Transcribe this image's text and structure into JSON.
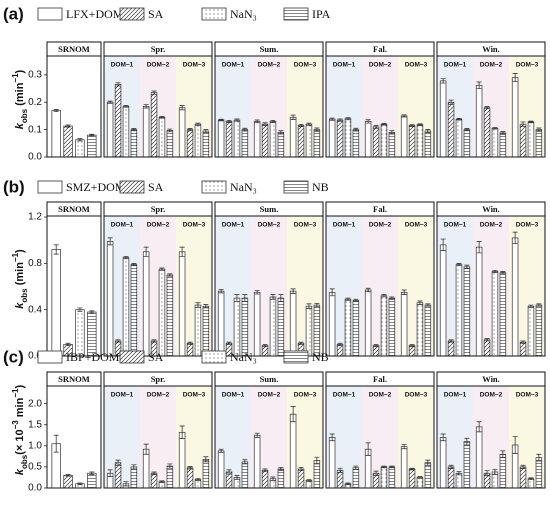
{
  "chart_data": [
    {
      "type": "grouped_bar",
      "panel_label": "(a)",
      "ylabel": [
        {
          "text": "k",
          "style": "italic"
        },
        {
          "text": "obs",
          "style": "sub"
        },
        {
          "text": " (min"
        },
        {
          "text": "−1",
          "style": "sup"
        },
        {
          "text": ")"
        }
      ],
      "groups": [
        {
          "name": "SRNOM",
          "categories": [
            null
          ]
        },
        {
          "name": "Spr.",
          "categories": [
            "DOM−1",
            "DOM−2",
            "DOM−3"
          ]
        },
        {
          "name": "Sum.",
          "categories": [
            "DOM−1",
            "DOM−2",
            "DOM−3"
          ]
        },
        {
          "name": "Fal.",
          "categories": [
            "DOM−1",
            "DOM−2",
            "DOM−3"
          ]
        },
        {
          "name": "Win.",
          "categories": [
            "DOM−1",
            "DOM−2",
            "DOM−3"
          ]
        }
      ],
      "band_colors": [
        "#e9f0f7",
        "#f7edf3",
        "#faf7e3"
      ],
      "ylim": [
        0,
        0.42
      ],
      "yticks": [
        {
          "value": 0,
          "label": "0.0"
        },
        0.1,
        0.2,
        0.3
      ],
      "series": [
        {
          "name": "LFX+DOM",
          "pattern": "none",
          "values": [
            0.17,
            0.2,
            0.185,
            0.18,
            0.135,
            0.13,
            0.145,
            0.138,
            0.13,
            0.15,
            0.278,
            0.262,
            0.29
          ],
          "errors": [
            0.004,
            0.004,
            0.006,
            0.008,
            0.003,
            0.005,
            0.008,
            0.004,
            0.006,
            0.004,
            0.008,
            0.012,
            0.015
          ]
        },
        {
          "name": "SA",
          "pattern": "diagonal",
          "values": [
            0.113,
            0.265,
            0.235,
            0.1,
            0.13,
            0.12,
            0.115,
            0.135,
            0.11,
            0.115,
            0.2,
            0.18,
            0.12
          ],
          "errors": [
            0.004,
            0.006,
            0.006,
            0.004,
            0.004,
            0.005,
            0.004,
            0.004,
            0.005,
            0.004,
            0.008,
            0.004,
            0.008
          ]
        },
        {
          "name": "NaN₃",
          "pattern": "dots",
          "values": [
            0.063,
            0.185,
            0.145,
            0.12,
            0.135,
            0.13,
            0.12,
            0.14,
            0.12,
            0.118,
            0.138,
            0.105,
            0.128
          ],
          "errors": [
            0.004,
            0.003,
            0.003,
            0.004,
            0.004,
            0.004,
            0.004,
            0.004,
            0.003,
            0.003,
            0.003,
            0.003,
            0.003
          ]
        },
        {
          "name": "IPA",
          "pattern": "horizontal",
          "values": [
            0.08,
            0.1,
            0.097,
            0.095,
            0.1,
            0.09,
            0.1,
            0.1,
            0.09,
            0.095,
            0.1,
            0.088,
            0.1
          ],
          "errors": [
            0.003,
            0.004,
            0.005,
            0.005,
            0.005,
            0.006,
            0.006,
            0.005,
            0.006,
            0.006,
            0.004,
            0.005,
            0.006
          ]
        }
      ]
    },
    {
      "type": "grouped_bar",
      "panel_label": "(b)",
      "ylabel": [
        {
          "text": "k",
          "style": "italic"
        },
        {
          "text": "obs",
          "style": "sub"
        },
        {
          "text": " (min"
        },
        {
          "text": "−1",
          "style": "sup"
        },
        {
          "text": ")"
        }
      ],
      "groups": [
        {
          "name": "SRNOM",
          "categories": [
            null
          ]
        },
        {
          "name": "Spr.",
          "categories": [
            "DOM−1",
            "DOM−2",
            "DOM−3"
          ]
        },
        {
          "name": "Sum.",
          "categories": [
            "DOM−1",
            "DOM−2",
            "DOM−3"
          ]
        },
        {
          "name": "Fal.",
          "categories": [
            "DOM−1",
            "DOM−2",
            "DOM−3"
          ]
        },
        {
          "name": "Win.",
          "categories": [
            "DOM−1",
            "DOM−2",
            "DOM−3"
          ]
        }
      ],
      "band_colors": [
        "#e9f0f7",
        "#f7edf3",
        "#faf7e3"
      ],
      "ylim": [
        0,
        1.33
      ],
      "yticks": [
        {
          "value": 0,
          "label": "0.0"
        },
        0.4,
        0.8,
        1.2
      ],
      "series": [
        {
          "name": "SMZ+DOM",
          "pattern": "none",
          "values": [
            0.92,
            0.99,
            0.9,
            0.9,
            0.56,
            0.55,
            0.56,
            0.55,
            0.57,
            0.55,
            0.96,
            0.94,
            1.02
          ],
          "errors": [
            0.04,
            0.03,
            0.04,
            0.04,
            0.015,
            0.015,
            0.02,
            0.03,
            0.015,
            0.02,
            0.05,
            0.05,
            0.05
          ]
        },
        {
          "name": "SA",
          "pattern": "diagonal",
          "values": [
            0.1,
            0.13,
            0.13,
            0.11,
            0.11,
            0.09,
            0.11,
            0.1,
            0.09,
            0.09,
            0.13,
            0.14,
            0.12
          ],
          "errors": [
            0.01,
            0.01,
            0.01,
            0.01,
            0.01,
            0.01,
            0.01,
            0.01,
            0.01,
            0.01,
            0.01,
            0.01,
            0.01
          ]
        },
        {
          "name": "NaN₃",
          "pattern": "dots",
          "values": [
            0.4,
            0.85,
            0.75,
            0.44,
            0.5,
            0.51,
            0.43,
            0.49,
            0.52,
            0.46,
            0.79,
            0.73,
            0.43
          ],
          "errors": [
            0.015,
            0.01,
            0.01,
            0.02,
            0.03,
            0.02,
            0.02,
            0.01,
            0.01,
            0.015,
            0.01,
            0.01,
            0.01
          ]
        },
        {
          "name": "NB",
          "pattern": "horizontal",
          "values": [
            0.38,
            0.79,
            0.7,
            0.43,
            0.5,
            0.5,
            0.44,
            0.48,
            0.5,
            0.44,
            0.77,
            0.72,
            0.44
          ],
          "errors": [
            0.01,
            0.01,
            0.01,
            0.015,
            0.03,
            0.03,
            0.015,
            0.01,
            0.01,
            0.01,
            0.015,
            0.01,
            0.01
          ]
        }
      ]
    },
    {
      "type": "grouped_bar",
      "panel_label": "(c)",
      "ylabel": [
        {
          "text": "k",
          "style": "italic"
        },
        {
          "text": "obs",
          "style": "sub"
        },
        {
          "text": "(× 10"
        },
        {
          "text": "−3",
          "style": "sup"
        },
        {
          "text": " min"
        },
        {
          "text": "−1",
          "style": "sup"
        },
        {
          "text": ")"
        }
      ],
      "groups": [
        {
          "name": "SRNOM",
          "categories": [
            null
          ]
        },
        {
          "name": "Spr.",
          "categories": [
            "DOM−1",
            "DOM−2",
            "DOM−3"
          ]
        },
        {
          "name": "Sum.",
          "categories": [
            "DOM−1",
            "DOM−2",
            "DOM−3"
          ]
        },
        {
          "name": "Fal.",
          "categories": [
            "DOM−1",
            "DOM−2",
            "DOM−3"
          ]
        },
        {
          "name": "Win.",
          "categories": [
            "DOM−1",
            "DOM−2",
            "DOM−3"
          ]
        }
      ],
      "band_colors": [
        "#e9f0f7",
        "#f7edf3",
        "#faf7e3"
      ],
      "ylim": [
        0,
        2.75
      ],
      "yticks": [
        {
          "value": 0,
          "label": "0.0"
        },
        0.5,
        {
          "value": 1,
          "label": "1.0"
        },
        1.5,
        {
          "value": 2,
          "label": "2.0"
        }
      ],
      "series": [
        {
          "name": "IBP+DOM",
          "pattern": "none",
          "values": [
            1.05,
            0.35,
            0.92,
            1.32,
            0.88,
            1.25,
            1.75,
            1.2,
            0.92,
            0.98,
            1.2,
            1.45,
            1.02
          ],
          "errors": [
            0.2,
            0.08,
            0.12,
            0.15,
            0.04,
            0.05,
            0.18,
            0.08,
            0.15,
            0.05,
            0.08,
            0.12,
            0.2
          ]
        },
        {
          "name": "SA",
          "pattern": "diagonal",
          "values": [
            0.3,
            0.6,
            0.35,
            0.48,
            0.38,
            0.42,
            0.45,
            0.42,
            0.35,
            0.45,
            0.5,
            0.35,
            0.5
          ],
          "errors": [
            0.02,
            0.06,
            0.03,
            0.03,
            0.05,
            0.03,
            0.04,
            0.05,
            0.05,
            0.02,
            0.04,
            0.06,
            0.04
          ]
        },
        {
          "name": "NaN₃",
          "pattern": "dots",
          "values": [
            0.1,
            0.1,
            0.15,
            0.2,
            0.25,
            0.22,
            0.18,
            0.1,
            0.5,
            0.25,
            0.35,
            0.38,
            0.22
          ],
          "errors": [
            0.02,
            0.05,
            0.02,
            0.02,
            0.05,
            0.04,
            0.02,
            0.02,
            0.02,
            0.02,
            0.04,
            0.06,
            0.02
          ]
        },
        {
          "name": "NB",
          "pattern": "horizontal",
          "values": [
            0.35,
            0.5,
            0.52,
            0.68,
            0.62,
            0.45,
            0.65,
            0.48,
            0.5,
            0.6,
            1.1,
            0.8,
            0.72
          ],
          "errors": [
            0.03,
            0.05,
            0.05,
            0.06,
            0.05,
            0.04,
            0.08,
            0.04,
            0.02,
            0.06,
            0.08,
            0.08,
            0.08
          ]
        }
      ]
    }
  ]
}
